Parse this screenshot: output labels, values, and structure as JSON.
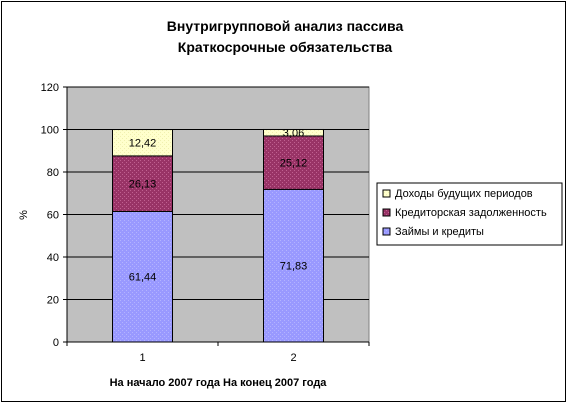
{
  "chart_data": {
    "type": "bar",
    "stacked": true,
    "title": [
      "Внутригрупповой анализ пассива",
      "Краткосрочные обязательства"
    ],
    "xlabel": "На начало 2007 года На конец 2007 года",
    "ylabel": "%",
    "categories": [
      "1",
      "2"
    ],
    "ylim": [
      0,
      120
    ],
    "yticks": [
      0,
      20,
      40,
      60,
      80,
      100,
      120
    ],
    "grid": true,
    "legend_position": "right",
    "series": [
      {
        "name": "Займы и кредиты",
        "values": [
          61.44,
          71.83
        ],
        "labels": [
          "61,44",
          "71,83"
        ],
        "color": "#9999ff"
      },
      {
        "name": "Кредиторская задолженность",
        "values": [
          26.13,
          25.12
        ],
        "labels": [
          "26,13",
          "25,12"
        ],
        "color": "#993366"
      },
      {
        "name": "Доходы будущих периодов",
        "values": [
          12.42,
          3.06
        ],
        "labels": [
          "12,42",
          "3,06"
        ],
        "color": "#ffffcc"
      }
    ],
    "plot_background": "#c0c0c0"
  }
}
